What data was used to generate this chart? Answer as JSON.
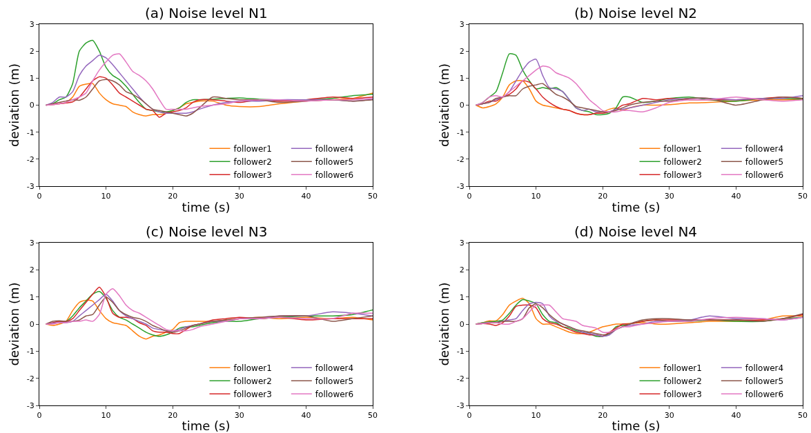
{
  "chart_data": [
    {
      "type": "line",
      "title": "(a) Noise level N1",
      "xlabel": "time (s)",
      "ylabel": "deviation (m)",
      "xlim": [
        0,
        50
      ],
      "xticks": [
        0,
        10,
        20,
        30,
        40,
        50
      ],
      "ylim": [
        -3,
        3
      ],
      "yticks": [
        -3,
        -2,
        -1,
        0,
        1,
        2,
        3
      ],
      "legend": "bottom right",
      "x": [
        1,
        2,
        3,
        4,
        5,
        6,
        7,
        8,
        9,
        10,
        11,
        12,
        13,
        14,
        15,
        16,
        17,
        18,
        19,
        20,
        21,
        22,
        23,
        24,
        26,
        28,
        30,
        33,
        36,
        40,
        44,
        47,
        50
      ],
      "series": [
        {
          "name": "follower1",
          "color": "#ff7f0e",
          "values": [
            null,
            null,
            0.05,
            0.1,
            0.3,
            0.7,
            0.78,
            0.8,
            0.45,
            0.2,
            0.05,
            0.0,
            -0.05,
            -0.25,
            -0.35,
            -0.4,
            -0.35,
            -0.35,
            -0.3,
            -0.2,
            -0.1,
            0.05,
            0.1,
            0.15,
            0.15,
            0.0,
            -0.05,
            -0.05,
            0.05,
            0.15,
            0.2,
            0.25,
            0.45
          ]
        },
        {
          "name": "follower2",
          "color": "#2ca02c",
          "values": [
            0,
            0.05,
            0.2,
            0.3,
            0.8,
            2.0,
            2.3,
            2.4,
            2.0,
            1.4,
            1.1,
            0.95,
            0.7,
            0.4,
            0.1,
            -0.15,
            -0.2,
            -0.25,
            -0.25,
            -0.2,
            -0.1,
            0.1,
            0.2,
            0.2,
            0.22,
            0.25,
            0.27,
            0.22,
            0.2,
            0.2,
            0.25,
            0.35,
            0.4
          ]
        },
        {
          "name": "follower3",
          "color": "#d62728",
          "values": [
            0,
            0.02,
            0.05,
            0.08,
            0.12,
            0.3,
            0.6,
            0.9,
            1.05,
            1.0,
            0.75,
            0.45,
            0.3,
            0.15,
            0.0,
            -0.15,
            -0.2,
            -0.45,
            -0.3,
            -0.25,
            -0.2,
            -0.1,
            0.1,
            0.2,
            0.2,
            0.15,
            0.1,
            0.2,
            0.15,
            0.2,
            0.3,
            0.25,
            0.3
          ]
        },
        {
          "name": "follower4",
          "color": "#9467bd",
          "values": [
            0,
            0.1,
            0.3,
            0.3,
            0.5,
            1.1,
            1.45,
            1.65,
            1.85,
            1.75,
            1.5,
            1.2,
            0.9,
            0.6,
            0.3,
            0.05,
            -0.15,
            -0.25,
            -0.3,
            -0.3,
            -0.3,
            -0.3,
            -0.25,
            -0.15,
            0.0,
            0.1,
            0.15,
            0.15,
            0.2,
            0.2,
            0.2,
            0.15,
            0.22
          ]
        },
        {
          "name": "follower5",
          "color": "#8c564b",
          "values": [
            0,
            0.05,
            0.1,
            0.15,
            0.2,
            0.18,
            0.3,
            0.6,
            0.9,
            0.95,
            0.9,
            0.75,
            0.5,
            0.4,
            0.25,
            0.05,
            -0.15,
            -0.2,
            -0.25,
            -0.3,
            -0.35,
            -0.4,
            -0.3,
            -0.1,
            0.3,
            0.25,
            0.2,
            0.2,
            0.1,
            0.15,
            0.2,
            0.15,
            0.2
          ]
        },
        {
          "name": "follower6",
          "color": "#e377c2",
          "values": [
            0,
            0.02,
            0.05,
            0.1,
            0.2,
            0.3,
            0.45,
            0.9,
            1.3,
            1.6,
            1.85,
            1.9,
            1.6,
            1.25,
            1.1,
            0.9,
            0.6,
            0.2,
            -0.15,
            -0.15,
            -0.15,
            -0.15,
            -0.1,
            -0.05,
            0.0,
            0.05,
            0.15,
            0.2,
            0.2,
            0.15,
            0.2,
            0.2,
            0.25
          ]
        }
      ]
    },
    {
      "type": "line",
      "title": "(b) Noise level N2",
      "xlabel": "time (s)",
      "ylabel": "deviation (m)",
      "xlim": [
        0,
        50
      ],
      "xticks": [
        0,
        10,
        20,
        30,
        40,
        50
      ],
      "ylim": [
        -3,
        3
      ],
      "yticks": [
        -3,
        -2,
        -1,
        0,
        1,
        2,
        3
      ],
      "legend": "bottom right",
      "x": [
        1,
        2,
        3,
        4,
        5,
        6,
        7,
        8,
        9,
        10,
        11,
        12,
        13,
        14,
        15,
        16,
        17,
        18,
        19,
        20,
        21,
        22,
        23,
        24,
        26,
        28,
        30,
        33,
        36,
        40,
        44,
        47,
        50
      ],
      "series": [
        {
          "name": "follower1",
          "color": "#ff7f0e",
          "values": [
            0,
            -0.1,
            -0.05,
            0.05,
            0.3,
            0.75,
            0.9,
            0.9,
            0.6,
            0.15,
            0.0,
            -0.05,
            -0.1,
            -0.15,
            -0.2,
            -0.3,
            -0.35,
            -0.35,
            -0.3,
            -0.25,
            -0.15,
            -0.1,
            -0.2,
            -0.1,
            0.0,
            0.0,
            0.02,
            0.08,
            0.1,
            0.15,
            0.2,
            0.2,
            0.22
          ]
        },
        {
          "name": "follower2",
          "color": "#2ca02c",
          "values": [
            0,
            0.1,
            0.3,
            0.5,
            1.2,
            1.9,
            1.85,
            1.3,
            0.9,
            0.6,
            0.65,
            0.6,
            0.65,
            0.5,
            0.2,
            -0.1,
            -0.2,
            -0.25,
            -0.35,
            -0.35,
            -0.3,
            -0.1,
            0.3,
            0.3,
            0.1,
            0.15,
            0.25,
            0.3,
            0.2,
            0.15,
            0.25,
            0.25,
            0.22
          ]
        },
        {
          "name": "follower3",
          "color": "#d62728",
          "values": [
            0,
            0.05,
            0.15,
            0.15,
            0.3,
            0.4,
            0.6,
            0.9,
            0.85,
            0.6,
            0.3,
            0.1,
            -0.05,
            -0.15,
            -0.2,
            -0.3,
            -0.35,
            -0.35,
            -0.3,
            -0.3,
            -0.25,
            -0.15,
            0.0,
            0.05,
            0.25,
            0.2,
            0.25,
            0.2,
            0.2,
            0.2,
            0.25,
            0.3,
            0.25
          ]
        },
        {
          "name": "follower4",
          "color": "#9467bd",
          "values": [
            0,
            0.05,
            0.1,
            0.2,
            0.3,
            0.5,
            0.9,
            1.3,
            1.6,
            1.7,
            1.1,
            0.65,
            0.6,
            0.5,
            0.2,
            -0.1,
            -0.2,
            -0.15,
            -0.25,
            -0.25,
            -0.25,
            -0.15,
            -0.15,
            -0.1,
            0.0,
            0.1,
            0.2,
            0.25,
            0.25,
            0.2,
            0.25,
            0.25,
            0.35
          ]
        },
        {
          "name": "follower5",
          "color": "#8c564b",
          "values": [
            0,
            0.05,
            0.1,
            0.25,
            0.3,
            0.35,
            0.35,
            0.6,
            0.7,
            0.75,
            0.8,
            0.6,
            0.4,
            0.3,
            0.15,
            -0.05,
            -0.1,
            -0.15,
            -0.2,
            -0.25,
            -0.25,
            -0.2,
            -0.1,
            0.0,
            0.1,
            0.15,
            0.15,
            0.25,
            0.25,
            0.0,
            0.2,
            0.3,
            0.25
          ]
        },
        {
          "name": "follower6",
          "color": "#e377c2",
          "values": [
            0,
            0.1,
            0.3,
            0.35,
            0.3,
            0.5,
            0.7,
            0.9,
            1.1,
            1.3,
            1.45,
            1.4,
            1.2,
            1.1,
            1.0,
            0.8,
            0.5,
            0.2,
            0.0,
            -0.2,
            -0.25,
            -0.25,
            -0.2,
            -0.2,
            -0.25,
            -0.1,
            0.1,
            0.2,
            0.2,
            0.3,
            0.2,
            0.15,
            0.2
          ]
        }
      ]
    },
    {
      "type": "line",
      "title": "(c) Noise level N3",
      "xlabel": "time (s)",
      "ylabel": "deviation (m)",
      "xlim": [
        0,
        50
      ],
      "xticks": [
        0,
        10,
        20,
        30,
        40,
        50
      ],
      "ylim": [
        -3,
        3
      ],
      "yticks": [
        -3,
        -2,
        -1,
        0,
        1,
        2,
        3
      ],
      "legend": "bottom right",
      "x": [
        1,
        2,
        3,
        4,
        5,
        6,
        7,
        8,
        9,
        10,
        11,
        12,
        13,
        14,
        15,
        16,
        17,
        18,
        19,
        20,
        21,
        22,
        23,
        24,
        26,
        28,
        30,
        33,
        36,
        40,
        44,
        47,
        50
      ],
      "series": [
        {
          "name": "follower1",
          "color": "#ff7f0e",
          "values": [
            0,
            -0.05,
            0.0,
            0.1,
            0.5,
            0.8,
            0.88,
            0.85,
            0.5,
            0.2,
            0.05,
            0.0,
            -0.05,
            -0.25,
            -0.45,
            -0.55,
            -0.45,
            -0.4,
            -0.3,
            -0.2,
            0.05,
            0.1,
            0.1,
            0.1,
            0.1,
            0.15,
            0.2,
            0.25,
            0.2,
            0.25,
            0.2,
            0.25,
            0.15
          ]
        },
        {
          "name": "follower2",
          "color": "#2ca02c",
          "values": [
            null,
            null,
            0.1,
            0.1,
            0.3,
            0.6,
            0.85,
            1.1,
            1.2,
            0.95,
            0.5,
            0.25,
            0.15,
            0.0,
            -0.15,
            -0.3,
            -0.4,
            -0.45,
            -0.4,
            -0.3,
            -0.15,
            -0.1,
            -0.1,
            -0.05,
            0.05,
            0.1,
            0.1,
            0.2,
            0.25,
            0.3,
            0.3,
            0.35,
            0.52
          ]
        },
        {
          "name": "follower3",
          "color": "#d62728",
          "values": [
            0,
            0.05,
            0.1,
            0.1,
            0.2,
            0.5,
            0.8,
            1.1,
            1.36,
            1.0,
            0.4,
            0.25,
            0.25,
            0.2,
            0.05,
            -0.05,
            -0.25,
            -0.3,
            -0.3,
            -0.35,
            -0.35,
            -0.2,
            -0.05,
            0.0,
            0.15,
            0.2,
            0.25,
            0.2,
            0.25,
            0.15,
            0.2,
            0.2,
            0.2
          ]
        },
        {
          "name": "follower4",
          "color": "#9467bd",
          "values": [
            0,
            0.03,
            0.05,
            0.05,
            0.1,
            0.3,
            0.5,
            0.7,
            0.9,
            1.1,
            0.85,
            0.5,
            0.3,
            0.2,
            0.1,
            0.0,
            -0.15,
            -0.2,
            -0.25,
            -0.25,
            -0.2,
            -0.1,
            -0.05,
            0.0,
            0.1,
            0.1,
            0.2,
            0.2,
            0.3,
            0.3,
            0.45,
            0.4,
            0.3
          ]
        },
        {
          "name": "follower5",
          "color": "#8c564b",
          "values": [
            0,
            0.1,
            0.12,
            0.1,
            0.1,
            0.15,
            0.3,
            0.35,
            0.7,
            1.0,
            0.8,
            0.5,
            0.35,
            0.25,
            0.2,
            0.1,
            -0.05,
            -0.15,
            -0.25,
            -0.3,
            -0.25,
            -0.15,
            -0.05,
            0.0,
            0.1,
            0.15,
            0.2,
            0.25,
            0.3,
            0.3,
            0.1,
            0.2,
            0.3
          ]
        },
        {
          "name": "follower6",
          "color": "#e377c2",
          "values": [
            0,
            0.0,
            0.05,
            0.05,
            0.1,
            0.1,
            0.15,
            0.1,
            0.35,
            1.1,
            1.3,
            1.05,
            0.7,
            0.5,
            0.4,
            0.25,
            0.1,
            -0.05,
            -0.2,
            -0.25,
            -0.25,
            -0.25,
            -0.2,
            -0.1,
            0.0,
            0.1,
            0.2,
            0.2,
            0.25,
            0.2,
            0.2,
            0.4,
            0.4
          ]
        }
      ]
    },
    {
      "type": "line",
      "title": "(d) Noise level N4",
      "xlabel": "time (s)",
      "ylabel": "deviation (m)",
      "xlim": [
        0,
        50
      ],
      "xticks": [
        0,
        10,
        20,
        30,
        40,
        50
      ],
      "ylim": [
        -3,
        3
      ],
      "yticks": [
        -3,
        -2,
        -1,
        0,
        1,
        2,
        3
      ],
      "legend": "bottom right",
      "x": [
        1,
        2,
        3,
        4,
        5,
        6,
        7,
        8,
        9,
        10,
        11,
        12,
        13,
        14,
        15,
        16,
        17,
        18,
        19,
        20,
        21,
        22,
        23,
        24,
        26,
        28,
        30,
        33,
        36,
        40,
        44,
        47,
        50
      ],
      "series": [
        {
          "name": "follower1",
          "color": "#ff7f0e",
          "values": [
            0,
            0.05,
            0.12,
            0.12,
            0.35,
            0.7,
            0.85,
            0.95,
            0.75,
            0.2,
            0.0,
            0.0,
            -0.1,
            -0.2,
            -0.3,
            -0.35,
            -0.35,
            -0.3,
            -0.2,
            -0.1,
            -0.05,
            0.0,
            0.0,
            0.02,
            0.05,
            0.0,
            0.0,
            0.05,
            0.1,
            0.1,
            0.15,
            0.3,
            0.3
          ]
        },
        {
          "name": "follower2",
          "color": "#2ca02c",
          "values": [
            0,
            0.05,
            0.08,
            0.1,
            0.15,
            0.4,
            0.7,
            0.9,
            0.85,
            0.75,
            0.35,
            0.1,
            0.05,
            -0.1,
            -0.15,
            -0.25,
            -0.3,
            -0.35,
            -0.45,
            -0.45,
            -0.35,
            -0.1,
            -0.05,
            0.0,
            0.1,
            0.15,
            0.1,
            0.1,
            0.15,
            0.1,
            0.1,
            0.2,
            0.25
          ]
        },
        {
          "name": "follower3",
          "color": "#d62728",
          "values": [
            0,
            0.02,
            0.0,
            -0.05,
            0.05,
            0.3,
            0.65,
            0.7,
            0.7,
            0.6,
            0.2,
            0.05,
            0.0,
            -0.1,
            -0.2,
            -0.3,
            -0.35,
            -0.4,
            -0.4,
            -0.45,
            -0.3,
            -0.15,
            0.0,
            0.0,
            0.1,
            0.15,
            0.15,
            0.15,
            0.15,
            0.15,
            0.15,
            0.2,
            0.35
          ]
        },
        {
          "name": "follower4",
          "color": "#9467bd",
          "values": [
            0,
            0.03,
            0.05,
            0.05,
            0.1,
            0.15,
            0.2,
            0.5,
            0.75,
            0.8,
            0.75,
            0.3,
            0.1,
            0.0,
            -0.1,
            -0.2,
            -0.3,
            -0.35,
            -0.4,
            -0.45,
            -0.4,
            -0.2,
            -0.1,
            -0.05,
            0.0,
            0.1,
            0.1,
            0.15,
            0.3,
            0.2,
            0.2,
            0.15,
            0.25
          ]
        },
        {
          "name": "follower5",
          "color": "#8c564b",
          "values": [
            0,
            0.02,
            0.05,
            0.05,
            0.1,
            0.1,
            0.1,
            0.2,
            0.6,
            0.75,
            0.6,
            0.35,
            0.15,
            0.0,
            -0.1,
            -0.2,
            -0.25,
            -0.3,
            -0.35,
            -0.4,
            -0.35,
            -0.2,
            -0.1,
            0.0,
            0.15,
            0.2,
            0.2,
            0.15,
            0.15,
            0.15,
            0.1,
            0.2,
            0.38
          ]
        },
        {
          "name": "follower6",
          "color": "#e377c2",
          "values": [
            0,
            0.02,
            0.05,
            0.05,
            0.0,
            0.0,
            0.1,
            0.2,
            0.45,
            0.7,
            0.7,
            0.7,
            0.45,
            0.2,
            0.15,
            0.1,
            -0.05,
            -0.1,
            -0.15,
            -0.3,
            -0.3,
            -0.2,
            -0.1,
            -0.1,
            0.0,
            0.05,
            0.1,
            0.1,
            0.2,
            0.25,
            0.2,
            0.15,
            0.25
          ]
        }
      ]
    }
  ]
}
